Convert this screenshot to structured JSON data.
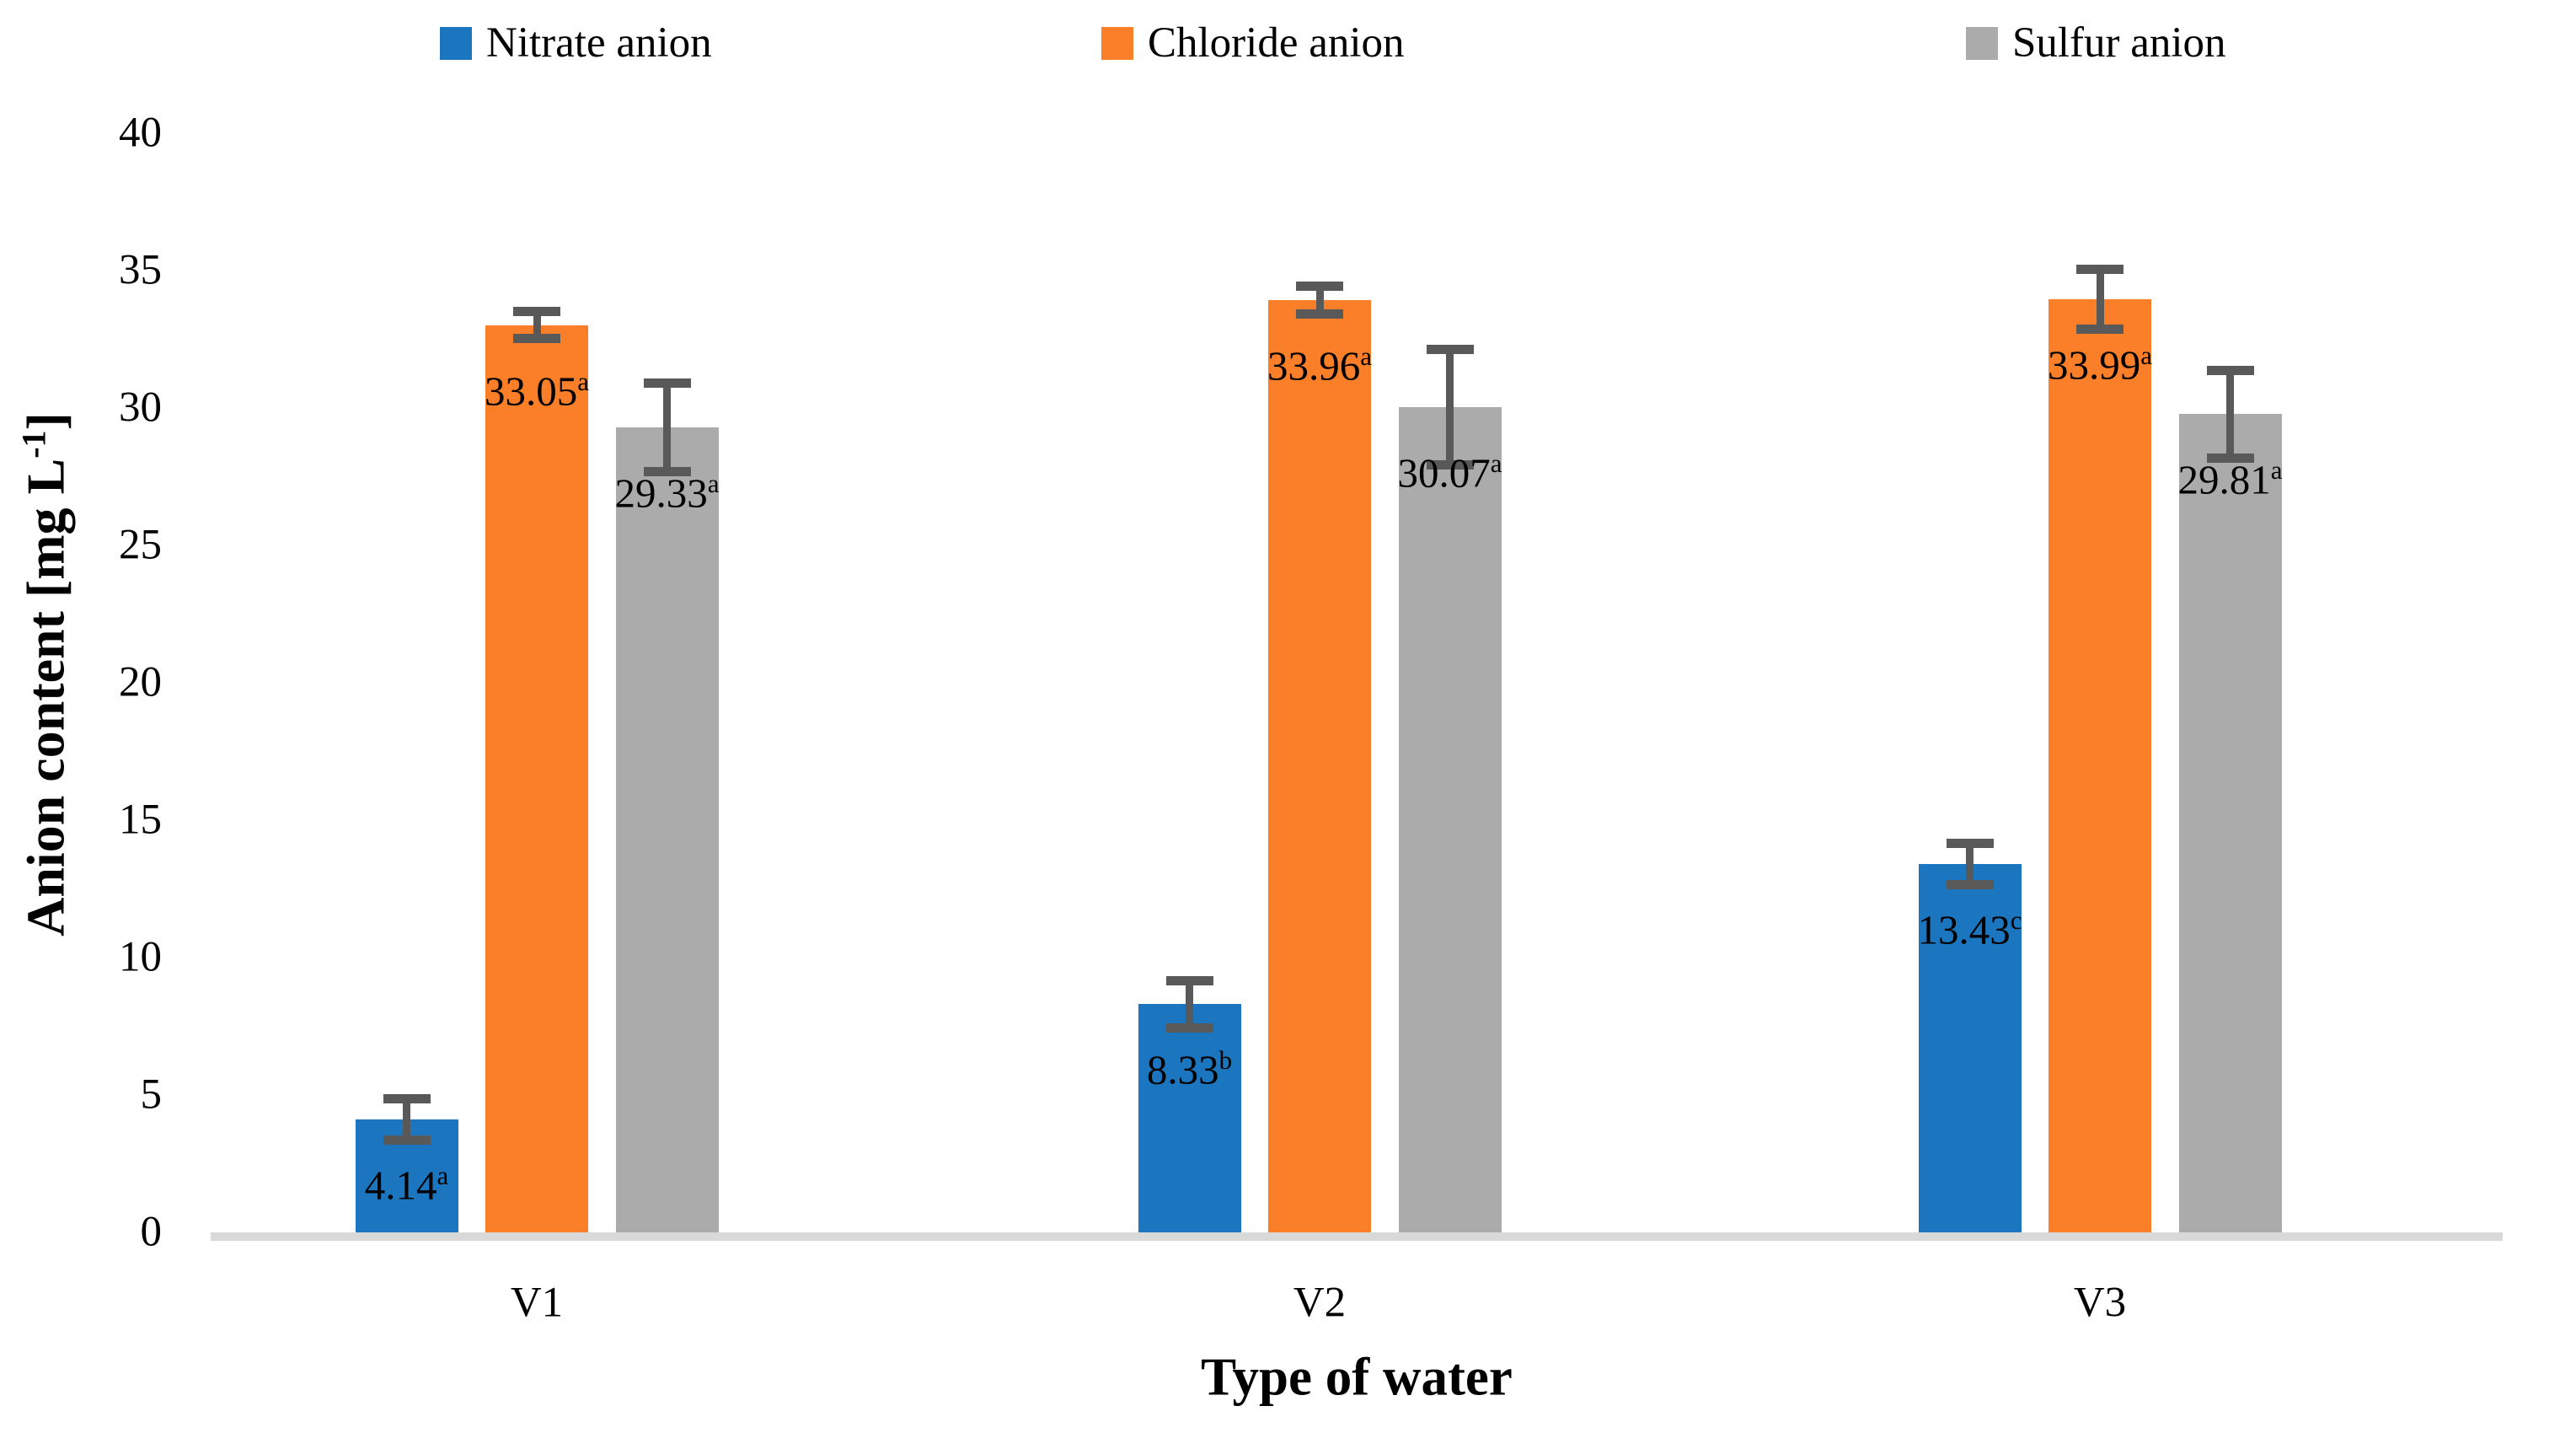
{
  "chart_data": {
    "type": "bar",
    "title": "",
    "categories": [
      "V1",
      "V2",
      "V3"
    ],
    "series": [
      {
        "name": "Nitrate anion",
        "color": "#1B76BF",
        "values": [
          4.14,
          8.33,
          13.43
        ],
        "errors": [
          0.75,
          0.85,
          0.75
        ],
        "labels": [
          "4.14",
          "8.33",
          "13.43"
        ],
        "label_superscripts": [
          "a",
          "b",
          "c"
        ]
      },
      {
        "name": "Chloride anion",
        "color": "#FB7E28",
        "values": [
          33.05,
          33.96,
          33.99
        ],
        "errors": [
          0.5,
          0.5,
          1.1
        ],
        "labels": [
          "33.05",
          "33.96",
          "33.99"
        ],
        "label_superscripts": [
          "a",
          "a",
          "a"
        ]
      },
      {
        "name": "Sulfur anion",
        "color": "#ABABAB",
        "values": [
          29.33,
          30.07,
          29.81
        ],
        "errors": [
          1.6,
          2.1,
          1.6
        ],
        "labels": [
          "29.33",
          "30.07",
          "29.81"
        ],
        "label_superscripts": [
          "a",
          "a",
          "a"
        ]
      }
    ],
    "xlabel": "Type of water",
    "ylabel": "Anion content [mg L-1]",
    "ylim": [
      0,
      40
    ],
    "yticks": [
      0,
      5,
      10,
      15,
      20,
      25,
      30,
      35,
      40
    ],
    "grid": false,
    "legend_position": "top",
    "error_bar_color": "#595959",
    "axis_line_color": "#D9D9D9"
  },
  "legend": {
    "items": [
      {
        "label": "Nitrate anion"
      },
      {
        "label": "Chloride anion"
      },
      {
        "label": "Sulfur anion"
      }
    ]
  },
  "axes": {
    "y_label_main": "Anion content [mg L",
    "y_label_sup": "-1",
    "y_label_close": "]",
    "x_label": "Type of water"
  }
}
